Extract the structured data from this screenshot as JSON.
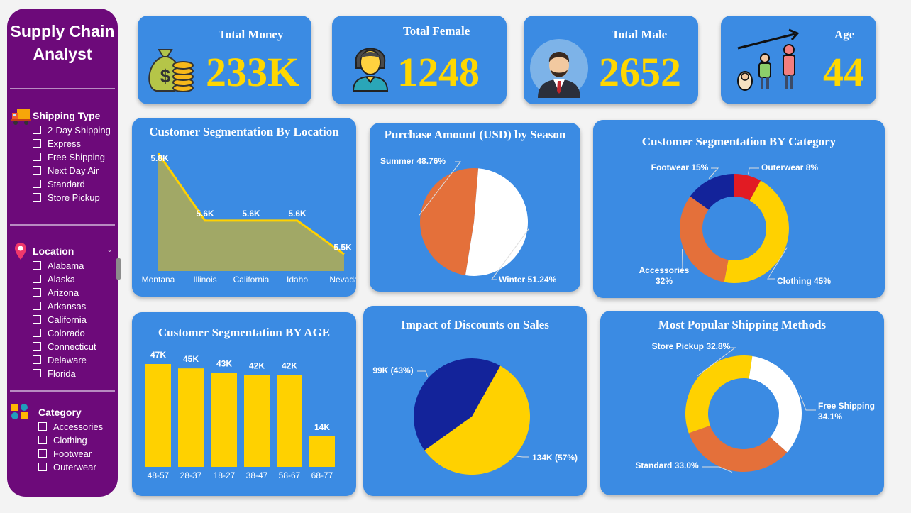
{
  "sidebar": {
    "title_line1": "Supply Chain",
    "title_line2": "Analyst",
    "shipping": {
      "label": "Shipping Type",
      "options": [
        "2-Day Shipping",
        "Express",
        "Free Shipping",
        "Next Day Air",
        "Standard",
        "Store Pickup"
      ]
    },
    "location": {
      "label": "Location",
      "options": [
        "Alabama",
        "Alaska",
        "Arizona",
        "Arkansas",
        "California",
        "Colorado",
        "Connecticut",
        "Delaware",
        "Florida"
      ]
    },
    "category": {
      "label": "Category",
      "options": [
        "Accessories",
        "Clothing",
        "Footwear",
        "Outerwear"
      ]
    }
  },
  "kpis": {
    "money": {
      "title": "Total Money",
      "value": "233K"
    },
    "female": {
      "title": "Total Female",
      "value": "1248"
    },
    "male": {
      "title": "Total Male",
      "value": "2652"
    },
    "age": {
      "title": "Age",
      "value": "44"
    }
  },
  "colors": {
    "card": "#3b8be3",
    "sidebar": "#6d0a7a",
    "yellow": "#ffd100",
    "orange": "#e4703a",
    "navy": "#13239a",
    "red": "#e21b23",
    "white": "#ffffff",
    "olive": "#a1a866"
  },
  "chart_data": [
    {
      "id": "location",
      "type": "area",
      "title": "Customer Segmentation By Location",
      "categories": [
        "Montana",
        "Illinois",
        "California",
        "Idaho",
        "Nevada"
      ],
      "values": [
        5.8,
        5.6,
        5.6,
        5.6,
        5.5
      ],
      "labels": [
        "5.8K",
        "5.6K",
        "5.6K",
        "5.6K",
        "5.5K"
      ]
    },
    {
      "id": "season",
      "type": "pie",
      "title": "Purchase Amount (USD) by Season",
      "slices": [
        {
          "label": "Summer 48.76%",
          "value": 48.76,
          "color": "#e4703a"
        },
        {
          "label": "Winter 51.24%",
          "value": 51.24,
          "color": "#ffffff"
        }
      ]
    },
    {
      "id": "category",
      "type": "pie",
      "title": "Customer Segmentation BY Category",
      "slices": [
        {
          "label": "Outerwear 8%",
          "value": 8,
          "color": "#e21b23"
        },
        {
          "label": "Clothing 45%",
          "value": 45,
          "color": "#ffd100"
        },
        {
          "label": "Accessories 32%",
          "value": 32,
          "color": "#e4703a"
        },
        {
          "label": "Footwear 15%",
          "value": 15,
          "color": "#13239a"
        }
      ]
    },
    {
      "id": "age",
      "type": "bar",
      "title": "Customer Segmentation BY AGE",
      "categories": [
        "48-57",
        "28-37",
        "18-27",
        "38-47",
        "58-67",
        "68-77"
      ],
      "values": [
        47,
        45,
        43,
        42,
        42,
        14
      ],
      "labels": [
        "47K",
        "45K",
        "43K",
        "42K",
        "42K",
        "14K"
      ]
    },
    {
      "id": "discount",
      "type": "pie",
      "title": "Impact of Discounts on Sales",
      "slices": [
        {
          "label": "134K (57%)",
          "value": 57,
          "color": "#ffd100"
        },
        {
          "label": "99K (43%)",
          "value": 43,
          "color": "#13239a"
        }
      ]
    },
    {
      "id": "shipping",
      "type": "pie",
      "title": "Most Popular Shipping Methods",
      "slices": [
        {
          "label": "Free Shipping 34.1%",
          "value": 34.1,
          "color": "#ffffff"
        },
        {
          "label": "Standard 33.0%",
          "value": 33.0,
          "color": "#e4703a"
        },
        {
          "label": "Store Pickup 32.8%",
          "value": 32.8,
          "color": "#ffd100"
        }
      ]
    }
  ]
}
